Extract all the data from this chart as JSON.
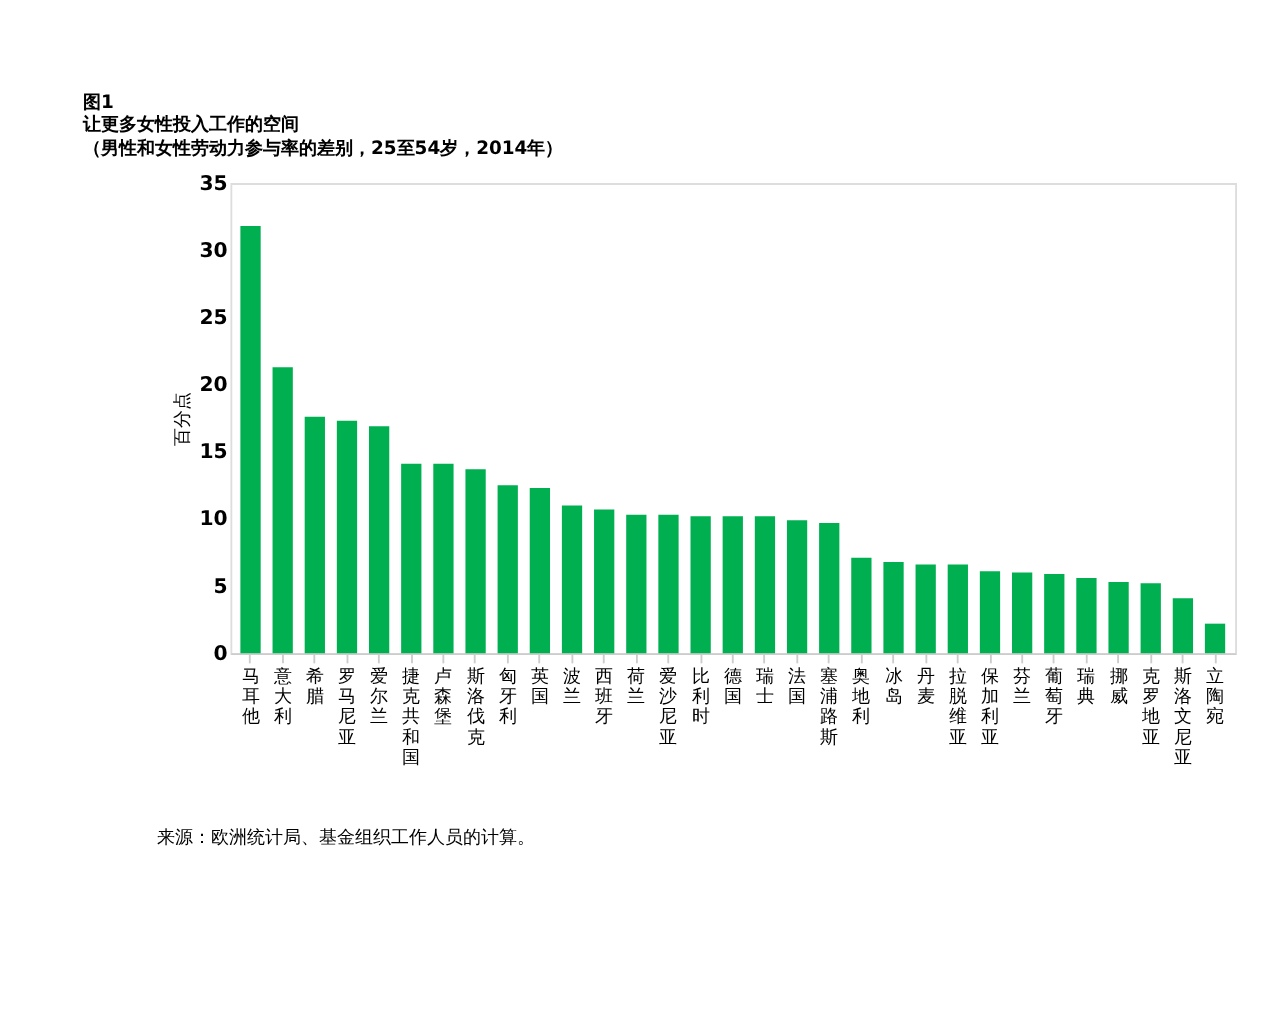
{
  "chart_data": {
    "type": "bar",
    "title": "图1\n让更多女性投入工作的空间",
    "subtitle": "（男性和女性劳动力参与率的差别，25至54岁，2014年）",
    "ylabel": "百分点",
    "categories": [
      "马耳他",
      "意大利",
      "希腊",
      "罗马尼亚",
      "爱尔兰",
      "捷克共和国",
      "卢森堡",
      "斯洛伐克",
      "匈牙利",
      "英国",
      "波兰",
      "西班牙",
      "荷兰",
      "爱沙尼亚",
      "比利时",
      "德国",
      "瑞士",
      "法国",
      "塞浦路斯",
      "奥地利",
      "冰岛",
      "丹麦",
      "拉脱维亚",
      "保加利亚",
      "芬兰",
      "葡萄牙",
      "瑞典",
      "挪威",
      "克罗地亚",
      "斯洛文尼亚",
      "立陶宛"
    ],
    "values": [
      31.8,
      21.3,
      17.6,
      17.3,
      16.9,
      14.1,
      14.1,
      13.7,
      12.5,
      12.3,
      11.0,
      10.7,
      10.3,
      10.3,
      10.2,
      10.2,
      10.2,
      9.9,
      9.7,
      7.1,
      6.8,
      6.6,
      6.6,
      6.1,
      6.0,
      5.9,
      5.6,
      5.3,
      5.2,
      4.1,
      2.2
    ],
    "color": "#00b050",
    "ylim": [
      0,
      35
    ],
    "yticks": [
      0,
      5,
      10,
      15,
      20,
      25,
      30,
      35
    ],
    "grid": false,
    "annotations": [
      "来源：欧洲统计局、基金组织工作人员的计算。"
    ]
  }
}
